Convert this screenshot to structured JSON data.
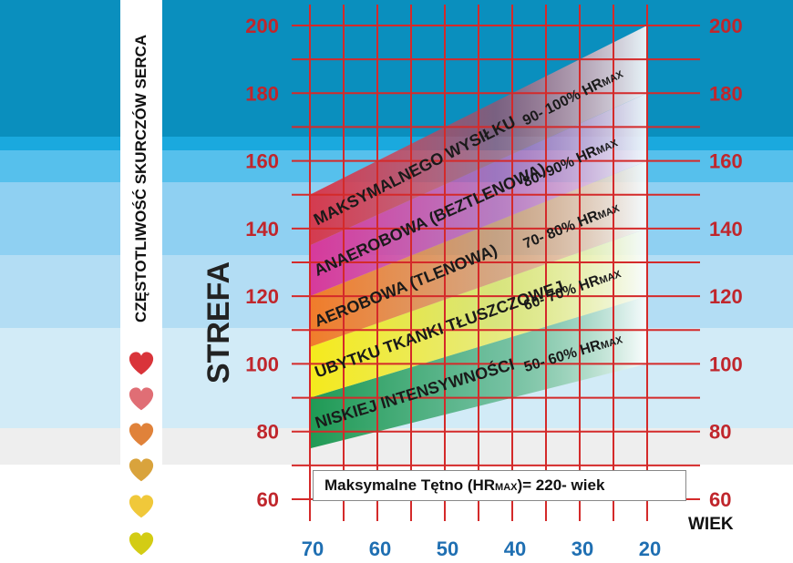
{
  "chart_data": {
    "type": "area",
    "title": "",
    "xlabel": "WIEK",
    "ylabel": "STREFA",
    "side_label": "CZĘSTOTLIWOŚĆ SKURCZÓW SERCA",
    "x_ticks": [
      "70",
      "60",
      "50",
      "40",
      "30",
      "20"
    ],
    "y_ticks": [
      "200",
      "180",
      "160",
      "140",
      "120",
      "100",
      "80",
      "60"
    ],
    "xlim": [
      70,
      20
    ],
    "ylim": [
      60,
      200
    ],
    "formula": {
      "text": "Maksymalne Tętno (HR",
      "sub": "MAX",
      "tail": ")= 220- wiek"
    },
    "series": [
      {
        "name": "NISKIEJ INTENSYWNOŚCI",
        "percent": "50- 60% HR",
        "sub": "MAX",
        "color": "#1f9a55",
        "x": [
          70,
          20
        ],
        "lower": [
          75,
          100
        ],
        "upper": [
          90,
          120
        ]
      },
      {
        "name": "UBYTKU TKANKI TŁUSZCZOWEJ",
        "percent": "60- 70% HR",
        "sub": "MAX",
        "color": "#f5ea1c",
        "x": [
          70,
          20
        ],
        "lower": [
          90,
          120
        ],
        "upper": [
          105,
          140
        ]
      },
      {
        "name": "AEROBOWA (TLENOWA)",
        "percent": "70- 80% HR",
        "sub": "MAX",
        "color": "#f07c2a",
        "x": [
          70,
          20
        ],
        "lower": [
          105,
          140
        ],
        "upper": [
          120,
          160
        ]
      },
      {
        "name": "ANAEROBOWA (BEZTLENOWA)",
        "percent": "80- 90% HR",
        "sub": "MAX",
        "color": "#d63a9b",
        "x": [
          70,
          20
        ],
        "lower": [
          120,
          160
        ],
        "upper": [
          135,
          180
        ]
      },
      {
        "name": "MAKSYMALNEGO WYSIŁKU",
        "percent": "90- 100% HR",
        "sub": "MAX",
        "color": "#d43b4f",
        "x": [
          70,
          20
        ],
        "lower": [
          135,
          180
        ],
        "upper": [
          150,
          200
        ]
      }
    ],
    "grid": true
  },
  "hearts": [
    {
      "color": "#d9343a"
    },
    {
      "color": "#e06e75"
    },
    {
      "color": "#e0823a"
    },
    {
      "color": "#d9a33c"
    },
    {
      "color": "#f0c83a"
    },
    {
      "color": "#d3cc14"
    }
  ],
  "background_bands": [
    "#0a8fbe",
    "#1aa9de",
    "#56c0ec",
    "#8fd0f2",
    "#b3ddf4",
    "#d2ebf7",
    "#eeeeee"
  ]
}
